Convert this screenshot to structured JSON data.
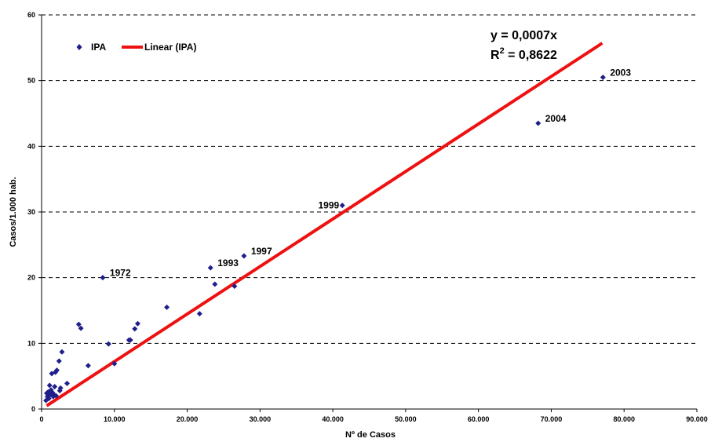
{
  "chart_data": {
    "type": "scatter",
    "xlabel": "Nº de Casos",
    "ylabel": "Casos/1.000 hab.",
    "xlim": [
      0,
      90000
    ],
    "ylim": [
      0,
      60
    ],
    "x_ticks": [
      0,
      10000,
      20000,
      30000,
      40000,
      50000,
      60000,
      70000,
      80000,
      90000
    ],
    "x_tick_labels": [
      "0",
      "10.000",
      "20.000",
      "30.000",
      "40.000",
      "50.000",
      "60.000",
      "70.000",
      "80.000",
      "90.000"
    ],
    "y_ticks": [
      0,
      10,
      20,
      30,
      40,
      50,
      60
    ],
    "y_tick_labels": [
      "0",
      "10",
      "20",
      "30",
      "40",
      "50",
      "60"
    ],
    "grid": "horizontal dashed",
    "legend": {
      "placement": "top-left",
      "items": [
        {
          "label": "IPA",
          "marker": "diamond",
          "color": "#1f1f8c"
        },
        {
          "label": "Linear (IPA)",
          "marker": "line",
          "color": "#ee1111"
        }
      ]
    },
    "series": [
      {
        "name": "IPA",
        "color": "#1f1f8c",
        "points": [
          {
            "x": 600,
            "y": 1.3
          },
          {
            "x": 700,
            "y": 2.4
          },
          {
            "x": 800,
            "y": 1.9
          },
          {
            "x": 900,
            "y": 2.6
          },
          {
            "x": 1000,
            "y": 1.6
          },
          {
            "x": 1100,
            "y": 3.6
          },
          {
            "x": 1200,
            "y": 2.2
          },
          {
            "x": 1300,
            "y": 2.9
          },
          {
            "x": 1400,
            "y": 5.4
          },
          {
            "x": 1500,
            "y": 2.5
          },
          {
            "x": 1600,
            "y": 1.9
          },
          {
            "x": 1700,
            "y": 2.2
          },
          {
            "x": 1800,
            "y": 3.4
          },
          {
            "x": 1900,
            "y": 5.6
          },
          {
            "x": 2000,
            "y": 2.0
          },
          {
            "x": 2100,
            "y": 5.9
          },
          {
            "x": 2400,
            "y": 7.3
          },
          {
            "x": 2500,
            "y": 2.8
          },
          {
            "x": 2600,
            "y": 3.2
          },
          {
            "x": 2800,
            "y": 8.7
          },
          {
            "x": 3500,
            "y": 3.9
          },
          {
            "x": 5100,
            "y": 12.9
          },
          {
            "x": 5400,
            "y": 12.3
          },
          {
            "x": 6400,
            "y": 6.6
          },
          {
            "x": 8400,
            "y": 20.0
          },
          {
            "x": 9200,
            "y": 9.9
          },
          {
            "x": 10000,
            "y": 6.9
          },
          {
            "x": 12000,
            "y": 10.5
          },
          {
            "x": 12200,
            "y": 10.5
          },
          {
            "x": 12800,
            "y": 12.2
          },
          {
            "x": 13200,
            "y": 13.0
          },
          {
            "x": 17200,
            "y": 15.5
          },
          {
            "x": 21700,
            "y": 14.5
          },
          {
            "x": 23200,
            "y": 21.5
          },
          {
            "x": 23800,
            "y": 19.0
          },
          {
            "x": 26500,
            "y": 18.7
          },
          {
            "x": 27800,
            "y": 23.3
          },
          {
            "x": 41300,
            "y": 31.0
          },
          {
            "x": 68200,
            "y": 43.5
          },
          {
            "x": 77100,
            "y": 50.5
          }
        ]
      }
    ],
    "trendline": {
      "name": "Linear (IPA)",
      "color": "#ee1111",
      "x": [
        700,
        77000
      ],
      "y": [
        0.5,
        55.7
      ]
    },
    "annotations": [
      {
        "text": "1972",
        "x": 8400,
        "y": 20.0,
        "side": "right"
      },
      {
        "text": "1993",
        "x": 23200,
        "y": 21.5,
        "side": "right"
      },
      {
        "text": "1997",
        "x": 27800,
        "y": 23.3,
        "side": "right"
      },
      {
        "text": "1999",
        "x": 41300,
        "y": 31.0,
        "side": "left"
      },
      {
        "text": "2003",
        "x": 77100,
        "y": 50.5,
        "side": "right"
      },
      {
        "text": "2004",
        "x": 68200,
        "y": 43.5,
        "side": "right"
      }
    ],
    "equation": {
      "line1": "y = 0,0007x",
      "r2_prefix": "R",
      "r2_sup": "2",
      "r2_value": " = 0,8622"
    }
  }
}
